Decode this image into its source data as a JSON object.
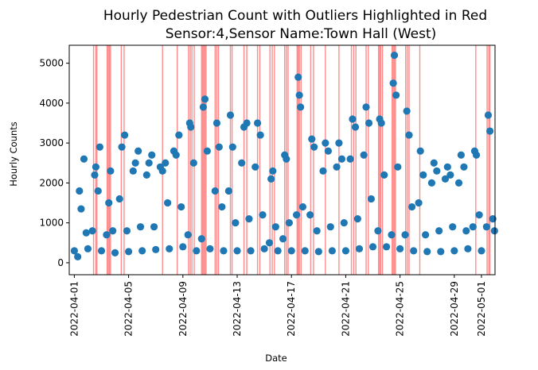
{
  "chart_data": {
    "type": "scatter",
    "title_line1": "Hourly Pedestrian Count with Outliers Highlighted in Red",
    "title_line2": "Sensor:4,Sensor Name:Town Hall (West)",
    "xlabel": "Date",
    "ylabel": "Hourly Counts",
    "x_type": "date",
    "x_range": [
      "2022-03-31T15:00",
      "2022-05-02T00:00"
    ],
    "x_ticks": [
      "2022-04-01",
      "2022-04-05",
      "2022-04-09",
      "2022-04-13",
      "2022-04-17",
      "2022-04-21",
      "2022-04-25",
      "2022-04-29",
      "2022-05-01"
    ],
    "y_range": [
      -300,
      5450
    ],
    "y_ticks": [
      0,
      1000,
      2000,
      3000,
      4000,
      5000
    ],
    "grid": false,
    "point_color": "#1f77b4",
    "outlier_line_color": "#ff0000",
    "series": [
      {
        "points": [
          [
            "2022-04-01T00:00",
            300
          ],
          [
            "2022-04-01T06:00",
            150
          ],
          [
            "2022-04-01T09:00",
            1800
          ],
          [
            "2022-04-01T12:00",
            1350
          ],
          [
            "2022-04-01T17:00",
            2600
          ],
          [
            "2022-04-01T21:00",
            750
          ],
          [
            "2022-04-02T00:00",
            350
          ],
          [
            "2022-04-02T08:00",
            800
          ],
          [
            "2022-04-02T12:00",
            2200
          ],
          [
            "2022-04-02T14:00",
            2400
          ],
          [
            "2022-04-02T18:00",
            1800
          ],
          [
            "2022-04-02T21:00",
            2900
          ],
          [
            "2022-04-03T00:00",
            300
          ],
          [
            "2022-04-03T09:00",
            700
          ],
          [
            "2022-04-03T13:00",
            1500
          ],
          [
            "2022-04-03T16:00",
            2300
          ],
          [
            "2022-04-03T20:00",
            800
          ],
          [
            "2022-04-04T00:00",
            250
          ],
          [
            "2022-04-04T08:00",
            1600
          ],
          [
            "2022-04-04T12:00",
            2900
          ],
          [
            "2022-04-04T17:00",
            3200
          ],
          [
            "2022-04-04T21:00",
            800
          ],
          [
            "2022-04-05T00:00",
            280
          ],
          [
            "2022-04-05T08:00",
            2300
          ],
          [
            "2022-04-05T12:00",
            2500
          ],
          [
            "2022-04-05T17:00",
            2800
          ],
          [
            "2022-04-05T21:00",
            900
          ],
          [
            "2022-04-06T00:00",
            300
          ],
          [
            "2022-04-06T08:00",
            2200
          ],
          [
            "2022-04-06T12:00",
            2500
          ],
          [
            "2022-04-06T17:00",
            2700
          ],
          [
            "2022-04-06T21:00",
            900
          ],
          [
            "2022-04-07T00:00",
            330
          ],
          [
            "2022-04-07T08:00",
            2400
          ],
          [
            "2022-04-07T12:00",
            2300
          ],
          [
            "2022-04-07T17:00",
            2500
          ],
          [
            "2022-04-07T21:00",
            1500
          ],
          [
            "2022-04-08T00:00",
            350
          ],
          [
            "2022-04-08T08:00",
            2800
          ],
          [
            "2022-04-08T12:00",
            2700
          ],
          [
            "2022-04-08T17:00",
            3200
          ],
          [
            "2022-04-08T21:00",
            1400
          ],
          [
            "2022-04-09T00:00",
            400
          ],
          [
            "2022-04-09T09:00",
            700
          ],
          [
            "2022-04-09T12:00",
            3500
          ],
          [
            "2022-04-09T14:00",
            3400
          ],
          [
            "2022-04-09T19:00",
            2500
          ],
          [
            "2022-04-10T00:00",
            300
          ],
          [
            "2022-04-10T09:00",
            600
          ],
          [
            "2022-04-10T12:00",
            3900
          ],
          [
            "2022-04-10T15:00",
            4100
          ],
          [
            "2022-04-10T19:00",
            2800
          ],
          [
            "2022-04-11T00:00",
            350
          ],
          [
            "2022-04-11T09:00",
            1800
          ],
          [
            "2022-04-11T12:00",
            3500
          ],
          [
            "2022-04-11T16:00",
            2900
          ],
          [
            "2022-04-11T21:00",
            1400
          ],
          [
            "2022-04-12T00:00",
            300
          ],
          [
            "2022-04-12T09:00",
            1800
          ],
          [
            "2022-04-12T12:00",
            3700
          ],
          [
            "2022-04-12T16:00",
            2900
          ],
          [
            "2022-04-12T21:00",
            1000
          ],
          [
            "2022-04-13T00:00",
            300
          ],
          [
            "2022-04-13T08:00",
            2500
          ],
          [
            "2022-04-13T12:00",
            3400
          ],
          [
            "2022-04-13T17:00",
            3500
          ],
          [
            "2022-04-13T21:00",
            1100
          ],
          [
            "2022-04-14T00:00",
            300
          ],
          [
            "2022-04-14T08:00",
            2400
          ],
          [
            "2022-04-14T12:00",
            3500
          ],
          [
            "2022-04-14T17:00",
            3200
          ],
          [
            "2022-04-14T21:00",
            1200
          ],
          [
            "2022-04-15T00:00",
            350
          ],
          [
            "2022-04-15T09:00",
            500
          ],
          [
            "2022-04-15T12:00",
            2100
          ],
          [
            "2022-04-15T15:00",
            2300
          ],
          [
            "2022-04-15T20:00",
            900
          ],
          [
            "2022-04-16T00:00",
            300
          ],
          [
            "2022-04-16T09:00",
            600
          ],
          [
            "2022-04-16T12:00",
            2700
          ],
          [
            "2022-04-16T15:00",
            2600
          ],
          [
            "2022-04-16T20:00",
            1000
          ],
          [
            "2022-04-17T00:00",
            300
          ],
          [
            "2022-04-17T09:00",
            1200
          ],
          [
            "2022-04-17T12:00",
            4650
          ],
          [
            "2022-04-17T14:00",
            4200
          ],
          [
            "2022-04-17T16:00",
            3900
          ],
          [
            "2022-04-17T20:00",
            1400
          ],
          [
            "2022-04-18T00:00",
            300
          ],
          [
            "2022-04-18T09:00",
            1200
          ],
          [
            "2022-04-18T12:00",
            3100
          ],
          [
            "2022-04-18T16:00",
            2900
          ],
          [
            "2022-04-18T21:00",
            800
          ],
          [
            "2022-04-19T00:00",
            280
          ],
          [
            "2022-04-19T08:00",
            2300
          ],
          [
            "2022-04-19T12:00",
            3000
          ],
          [
            "2022-04-19T17:00",
            2800
          ],
          [
            "2022-04-19T21:00",
            900
          ],
          [
            "2022-04-20T00:00",
            300
          ],
          [
            "2022-04-20T08:00",
            2400
          ],
          [
            "2022-04-20T12:00",
            3000
          ],
          [
            "2022-04-20T17:00",
            2600
          ],
          [
            "2022-04-20T21:00",
            1000
          ],
          [
            "2022-04-21T00:00",
            300
          ],
          [
            "2022-04-21T08:00",
            2600
          ],
          [
            "2022-04-21T12:00",
            3600
          ],
          [
            "2022-04-21T17:00",
            3400
          ],
          [
            "2022-04-21T21:00",
            1100
          ],
          [
            "2022-04-22T00:00",
            350
          ],
          [
            "2022-04-22T08:00",
            2700
          ],
          [
            "2022-04-22T12:00",
            3900
          ],
          [
            "2022-04-22T17:00",
            3500
          ],
          [
            "2022-04-22T21:00",
            1600
          ],
          [
            "2022-04-23T00:00",
            400
          ],
          [
            "2022-04-23T09:00",
            800
          ],
          [
            "2022-04-23T12:00",
            3600
          ],
          [
            "2022-04-23T15:00",
            3500
          ],
          [
            "2022-04-23T20:00",
            2200
          ],
          [
            "2022-04-24T00:00",
            400
          ],
          [
            "2022-04-24T09:00",
            700
          ],
          [
            "2022-04-24T12:00",
            4500
          ],
          [
            "2022-04-24T14:00",
            5200
          ],
          [
            "2022-04-24T17:00",
            4200
          ],
          [
            "2022-04-24T20:00",
            2400
          ],
          [
            "2022-04-25T00:00",
            350
          ],
          [
            "2022-04-25T09:00",
            700
          ],
          [
            "2022-04-25T12:00",
            3800
          ],
          [
            "2022-04-25T16:00",
            3200
          ],
          [
            "2022-04-25T21:00",
            1400
          ],
          [
            "2022-04-26T00:00",
            300
          ],
          [
            "2022-04-26T09:00",
            1500
          ],
          [
            "2022-04-26T12:00",
            2800
          ],
          [
            "2022-04-26T17:00",
            2200
          ],
          [
            "2022-04-26T21:00",
            700
          ],
          [
            "2022-04-27T00:00",
            280
          ],
          [
            "2022-04-27T08:00",
            2000
          ],
          [
            "2022-04-27T12:00",
            2500
          ],
          [
            "2022-04-27T17:00",
            2300
          ],
          [
            "2022-04-27T21:00",
            800
          ],
          [
            "2022-04-28T00:00",
            280
          ],
          [
            "2022-04-28T08:00",
            2100
          ],
          [
            "2022-04-28T12:00",
            2400
          ],
          [
            "2022-04-28T17:00",
            2200
          ],
          [
            "2022-04-28T21:00",
            900
          ],
          [
            "2022-04-29T00:00",
            300
          ],
          [
            "2022-04-29T08:00",
            2000
          ],
          [
            "2022-04-29T12:00",
            2700
          ],
          [
            "2022-04-29T17:00",
            2400
          ],
          [
            "2022-04-29T21:00",
            800
          ],
          [
            "2022-04-30T00:00",
            350
          ],
          [
            "2022-04-30T09:00",
            900
          ],
          [
            "2022-04-30T12:00",
            2800
          ],
          [
            "2022-04-30T15:00",
            2700
          ],
          [
            "2022-04-30T20:00",
            1200
          ],
          [
            "2022-05-01T00:00",
            300
          ],
          [
            "2022-05-01T09:00",
            900
          ],
          [
            "2022-05-01T12:00",
            3700
          ],
          [
            "2022-05-01T15:00",
            3300
          ],
          [
            "2022-05-01T20:00",
            1100
          ],
          [
            "2022-05-01T23:00",
            800
          ]
        ]
      }
    ],
    "outlier_times": [
      "2022-04-02T10:00",
      "2022-04-02T14:00",
      "2022-04-02T16:00",
      "2022-04-03T10:00",
      "2022-04-03T12:00",
      "2022-04-03T14:00",
      "2022-04-03T16:00",
      "2022-04-04T11:00",
      "2022-04-04T16:00",
      "2022-04-07T12:00",
      "2022-04-08T14:00",
      "2022-04-09T10:00",
      "2022-04-09T13:00",
      "2022-04-09T16:00",
      "2022-04-09T20:00",
      "2022-04-10T09:00",
      "2022-04-10T11:00",
      "2022-04-10T13:00",
      "2022-04-10T15:00",
      "2022-04-10T17:00",
      "2022-04-11T09:00",
      "2022-04-11T12:00",
      "2022-04-11T15:00",
      "2022-04-12T12:00",
      "2022-04-12T15:00",
      "2022-04-13T12:00",
      "2022-04-13T17:00",
      "2022-04-14T12:00",
      "2022-04-14T16:00",
      "2022-04-15T10:00",
      "2022-04-15T14:00",
      "2022-04-15T18:00",
      "2022-04-16T12:00",
      "2022-04-16T15:00",
      "2022-04-16T18:00",
      "2022-04-17T10:00",
      "2022-04-17T12:00",
      "2022-04-17T14:00",
      "2022-04-17T17:00",
      "2022-04-18T10:00",
      "2022-04-18T15:00",
      "2022-04-19T12:00",
      "2022-04-20T12:00",
      "2022-04-21T10:00",
      "2022-04-21T14:00",
      "2022-04-21T18:00",
      "2022-04-22T12:00",
      "2022-04-22T16:00",
      "2022-04-23T10:00",
      "2022-04-23T12:00",
      "2022-04-23T14:00",
      "2022-04-23T17:00",
      "2022-04-24T10:00",
      "2022-04-24T12:00",
      "2022-04-24T14:00",
      "2022-04-24T16:00",
      "2022-04-25T10:00",
      "2022-04-25T13:00",
      "2022-04-25T16:00",
      "2022-04-26T11:00",
      "2022-04-30T14:00",
      "2022-05-01T10:00",
      "2022-05-01T13:00",
      "2022-05-01T15:00"
    ]
  }
}
